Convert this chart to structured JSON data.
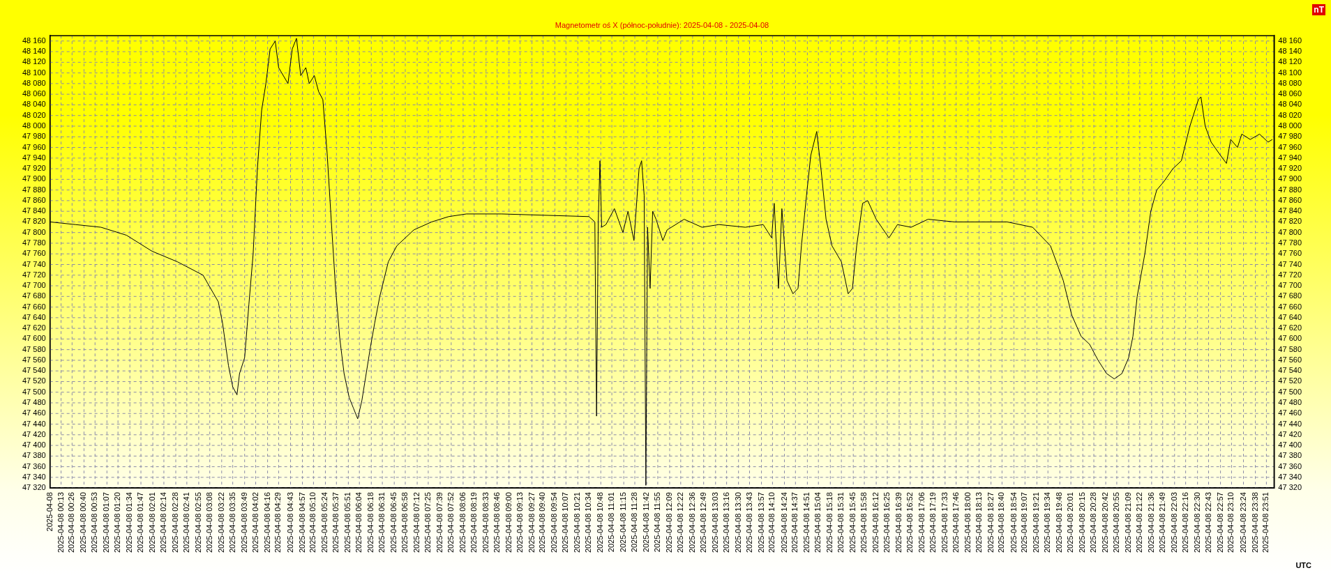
{
  "chart_data": {
    "type": "line",
    "title": "Magnetometr oś X (północ-południe): 2025-04-08 - 2025-04-08",
    "xlabel": "UTC",
    "y2label": "nT",
    "x": [
      "2025-04-08T00:00",
      "2025-04-08T00:30",
      "2025-04-08T01:00",
      "2025-04-08T01:30",
      "2025-04-08T02:00",
      "2025-04-08T02:30",
      "2025-04-08T03:00",
      "2025-04-08T03:18",
      "2025-04-08T03:23",
      "2025-04-08T03:30",
      "2025-04-08T03:35",
      "2025-04-08T03:40",
      "2025-04-08T03:43",
      "2025-04-08T03:49",
      "2025-04-08T03:54",
      "2025-04-08T03:59",
      "2025-04-08T04:04",
      "2025-04-08T04:09",
      "2025-04-08T04:14",
      "2025-04-08T04:19",
      "2025-04-08T04:25",
      "2025-04-08T04:29",
      "2025-04-08T04:40",
      "2025-04-08T04:45",
      "2025-04-08T04:50",
      "2025-04-08T04:55",
      "2025-04-08T05:01",
      "2025-04-08T05:05",
      "2025-04-08T05:11",
      "2025-04-08T05:16",
      "2025-04-08T05:21",
      "2025-04-08T05:26",
      "2025-04-08T05:31",
      "2025-04-08T05:36",
      "2025-04-08T05:41",
      "2025-04-08T05:46",
      "2025-04-08T05:52",
      "2025-04-08T05:57",
      "2025-04-08T06:02",
      "2025-04-08T06:07",
      "2025-04-08T06:12",
      "2025-04-08T06:17",
      "2025-04-08T06:22",
      "2025-04-08T06:28",
      "2025-04-08T06:38",
      "2025-04-08T06:48",
      "2025-04-08T07:08",
      "2025-04-08T07:29",
      "2025-04-08T07:49",
      "2025-04-08T08:10",
      "2025-04-08T08:51",
      "2025-04-08T10:34",
      "2025-04-08T10:41",
      "2025-04-08T10:43",
      "2025-04-08T10:45",
      "2025-04-08T10:47",
      "2025-04-08T10:49",
      "2025-04-08T10:54",
      "2025-04-08T11:04",
      "2025-04-08T11:14",
      "2025-04-08T11:20",
      "2025-04-08T11:27",
      "2025-04-08T11:33",
      "2025-04-08T11:36",
      "2025-04-08T11:39",
      "2025-04-08T11:41",
      "2025-04-08T11:43",
      "2025-04-08T11:46",
      "2025-04-08T11:49",
      "2025-04-08T11:53",
      "2025-04-08T12:01",
      "2025-04-08T12:06",
      "2025-04-08T12:26",
      "2025-04-08T12:47",
      "2025-04-08T13:07",
      "2025-04-08T13:38",
      "2025-04-08T13:59",
      "2025-04-08T14:09",
      "2025-04-08T14:12",
      "2025-04-08T14:17",
      "2025-04-08T14:21",
      "2025-04-08T14:27",
      "2025-04-08T14:34",
      "2025-04-08T14:40",
      "2025-04-08T14:44",
      "2025-04-08T14:50",
      "2025-04-08T14:55",
      "2025-04-08T15:02",
      "2025-04-08T15:07",
      "2025-04-08T15:13",
      "2025-04-08T15:20",
      "2025-04-08T15:31",
      "2025-04-08T15:39",
      "2025-04-08T15:44",
      "2025-04-08T15:49",
      "2025-04-08T15:56",
      "2025-04-08T16:02",
      "2025-04-08T16:12",
      "2025-04-08T16:27",
      "2025-04-08T16:37",
      "2025-04-08T16:53",
      "2025-04-08T17:13",
      "2025-04-08T17:44",
      "2025-04-08T18:46",
      "2025-04-08T19:16",
      "2025-04-08T19:37",
      "2025-04-08T19:52",
      "2025-04-08T20:02",
      "2025-04-08T20:13",
      "2025-04-08T20:23",
      "2025-04-08T20:33",
      "2025-04-08T20:43",
      "2025-04-08T20:52",
      "2025-04-08T21:01",
      "2025-04-08T21:09",
      "2025-04-08T21:14",
      "2025-04-08T21:19",
      "2025-04-08T21:28",
      "2025-04-08T21:35",
      "2025-04-08T21:42",
      "2025-04-08T21:50",
      "2025-04-08T22:01",
      "2025-04-08T22:11",
      "2025-04-08T22:21",
      "2025-04-08T22:31",
      "2025-04-08T22:34",
      "2025-04-08T22:39",
      "2025-04-08T22:46",
      "2025-04-08T22:57",
      "2025-04-08T23:04",
      "2025-04-08T23:09",
      "2025-04-08T23:17",
      "2025-04-08T23:22",
      "2025-04-08T23:32",
      "2025-04-08T23:43",
      "2025-04-08T23:53",
      "2025-04-08T23:58"
    ],
    "series": [
      {
        "color": "#000000",
        "values": [
          47820,
          47815,
          47810,
          47795,
          47765,
          47745,
          47720,
          47670,
          47630,
          47550,
          47510,
          47495,
          47535,
          47565,
          47665,
          47760,
          47920,
          48030,
          48080,
          48145,
          48160,
          48110,
          48080,
          48145,
          48165,
          48095,
          48110,
          48080,
          48095,
          48065,
          48050,
          47950,
          47820,
          47695,
          47600,
          47535,
          47490,
          47470,
          47450,
          47485,
          47535,
          47585,
          47630,
          47680,
          47745,
          47775,
          47805,
          47820,
          47830,
          47835,
          47835,
          47830,
          47820,
          47455,
          47820,
          47935,
          47810,
          47815,
          47845,
          47800,
          47840,
          47785,
          47920,
          47935,
          47870,
          47325,
          47810,
          47695,
          47840,
          47825,
          47785,
          47805,
          47825,
          47810,
          47815,
          47810,
          47815,
          47790,
          47855,
          47695,
          47845,
          47710,
          47685,
          47695,
          47775,
          47870,
          47945,
          47990,
          47920,
          47825,
          47775,
          47745,
          47685,
          47695,
          47775,
          47855,
          47860,
          47825,
          47790,
          47815,
          47810,
          47825,
          47820,
          47820,
          47810,
          47775,
          47710,
          47645,
          47605,
          47590,
          47560,
          47535,
          47525,
          47535,
          47565,
          47605,
          47680,
          47760,
          47840,
          47880,
          47895,
          47920,
          47935,
          48000,
          48050,
          48055,
          48000,
          47970,
          47945,
          47930,
          47975,
          47960,
          47985,
          47975,
          47985,
          47970,
          47975
        ]
      }
    ],
    "xlim": [
      "2025-04-08T00:00",
      "2025-04-09T00:00"
    ],
    "xticks": [
      {
        "value": "2025-04-08T00:00",
        "label": "2025-04-08"
      },
      {
        "value": "2025-04-08T00:13",
        "label": "2025-04-08 00:13"
      },
      {
        "value": "2025-04-08T00:26",
        "label": "2025-04-08 00:26"
      },
      {
        "value": "2025-04-08T00:40",
        "label": "2025-04-08 00:40"
      },
      {
        "value": "2025-04-08T00:53",
        "label": "2025-04-08 00:53"
      },
      {
        "value": "2025-04-08T01:07",
        "label": "2025-04-08 01:07"
      },
      {
        "value": "2025-04-08T01:20",
        "label": "2025-04-08 01:20"
      },
      {
        "value": "2025-04-08T01:34",
        "label": "2025-04-08 01:34"
      },
      {
        "value": "2025-04-08T01:47",
        "label": "2025-04-08 01:47"
      },
      {
        "value": "2025-04-08T02:01",
        "label": "2025-04-08 02:01"
      },
      {
        "value": "2025-04-08T02:14",
        "label": "2025-04-08 02:14"
      },
      {
        "value": "2025-04-08T02:28",
        "label": "2025-04-08 02:28"
      },
      {
        "value": "2025-04-08T02:41",
        "label": "2025-04-08 02:41"
      },
      {
        "value": "2025-04-08T02:55",
        "label": "2025-04-08 02:55"
      },
      {
        "value": "2025-04-08T03:08",
        "label": "2025-04-08 03:08"
      },
      {
        "value": "2025-04-08T03:22",
        "label": "2025-04-08 03:22"
      },
      {
        "value": "2025-04-08T03:35",
        "label": "2025-04-08 03:35"
      },
      {
        "value": "2025-04-08T03:49",
        "label": "2025-04-08 03:49"
      },
      {
        "value": "2025-04-08T04:02",
        "label": "2025-04-08 04:02"
      },
      {
        "value": "2025-04-08T04:16",
        "label": "2025-04-08 04:16"
      },
      {
        "value": "2025-04-08T04:29",
        "label": "2025-04-08 04:29"
      },
      {
        "value": "2025-04-08T04:43",
        "label": "2025-04-08 04:43"
      },
      {
        "value": "2025-04-08T04:57",
        "label": "2025-04-08 04:57"
      },
      {
        "value": "2025-04-08T05:10",
        "label": "2025-04-08 05:10"
      },
      {
        "value": "2025-04-08T05:24",
        "label": "2025-04-08 05:24"
      },
      {
        "value": "2025-04-08T05:37",
        "label": "2025-04-08 05:37"
      },
      {
        "value": "2025-04-08T05:51",
        "label": "2025-04-08 05:51"
      },
      {
        "value": "2025-04-08T06:04",
        "label": "2025-04-08 06:04"
      },
      {
        "value": "2025-04-08T06:18",
        "label": "2025-04-08 06:18"
      },
      {
        "value": "2025-04-08T06:31",
        "label": "2025-04-08 06:31"
      },
      {
        "value": "2025-04-08T06:45",
        "label": "2025-04-08 06:45"
      },
      {
        "value": "2025-04-08T06:58",
        "label": "2025-04-08 06:58"
      },
      {
        "value": "2025-04-08T07:12",
        "label": "2025-04-08 07:12"
      },
      {
        "value": "2025-04-08T07:25",
        "label": "2025-04-08 07:25"
      },
      {
        "value": "2025-04-08T07:39",
        "label": "2025-04-08 07:39"
      },
      {
        "value": "2025-04-08T07:52",
        "label": "2025-04-08 07:52"
      },
      {
        "value": "2025-04-08T08:06",
        "label": "2025-04-08 08:06"
      },
      {
        "value": "2025-04-08T08:19",
        "label": "2025-04-08 08:19"
      },
      {
        "value": "2025-04-08T08:33",
        "label": "2025-04-08 08:33"
      },
      {
        "value": "2025-04-08T08:46",
        "label": "2025-04-08 08:46"
      },
      {
        "value": "2025-04-08T09:00",
        "label": "2025-04-08 09:00"
      },
      {
        "value": "2025-04-08T09:13",
        "label": "2025-04-08 09:13"
      },
      {
        "value": "2025-04-08T09:27",
        "label": "2025-04-08 09:27"
      },
      {
        "value": "2025-04-08T09:40",
        "label": "2025-04-08 09:40"
      },
      {
        "value": "2025-04-08T09:54",
        "label": "2025-04-08 09:54"
      },
      {
        "value": "2025-04-08T10:07",
        "label": "2025-04-08 10:07"
      },
      {
        "value": "2025-04-08T10:21",
        "label": "2025-04-08 10:21"
      },
      {
        "value": "2025-04-08T10:34",
        "label": "2025-04-08 10:34"
      },
      {
        "value": "2025-04-08T10:48",
        "label": "2025-04-08 10:48"
      },
      {
        "value": "2025-04-08T11:01",
        "label": "2025-04-08 11:01"
      },
      {
        "value": "2025-04-08T11:15",
        "label": "2025-04-08 11:15"
      },
      {
        "value": "2025-04-08T11:28",
        "label": "2025-04-08 11:28"
      },
      {
        "value": "2025-04-08T11:42",
        "label": "2025-04-08 11:42"
      },
      {
        "value": "2025-04-08T11:55",
        "label": "2025-04-08 11:55"
      },
      {
        "value": "2025-04-08T12:09",
        "label": "2025-04-08 12:09"
      },
      {
        "value": "2025-04-08T12:22",
        "label": "2025-04-08 12:22"
      },
      {
        "value": "2025-04-08T12:36",
        "label": "2025-04-08 12:36"
      },
      {
        "value": "2025-04-08T12:49",
        "label": "2025-04-08 12:49"
      },
      {
        "value": "2025-04-08T13:03",
        "label": "2025-04-08 13:03"
      },
      {
        "value": "2025-04-08T13:16",
        "label": "2025-04-08 13:16"
      },
      {
        "value": "2025-04-08T13:30",
        "label": "2025-04-08 13:30"
      },
      {
        "value": "2025-04-08T13:43",
        "label": "2025-04-08 13:43"
      },
      {
        "value": "2025-04-08T13:57",
        "label": "2025-04-08 13:57"
      },
      {
        "value": "2025-04-08T14:10",
        "label": "2025-04-08 14:10"
      },
      {
        "value": "2025-04-08T14:24",
        "label": "2025-04-08 14:24"
      },
      {
        "value": "2025-04-08T14:37",
        "label": "2025-04-08 14:37"
      },
      {
        "value": "2025-04-08T14:51",
        "label": "2025-04-08 14:51"
      },
      {
        "value": "2025-04-08T15:04",
        "label": "2025-04-08 15:04"
      },
      {
        "value": "2025-04-08T15:18",
        "label": "2025-04-08 15:18"
      },
      {
        "value": "2025-04-08T15:31",
        "label": "2025-04-08 15:31"
      },
      {
        "value": "2025-04-08T15:45",
        "label": "2025-04-08 15:45"
      },
      {
        "value": "2025-04-08T15:58",
        "label": "2025-04-08 15:58"
      },
      {
        "value": "2025-04-08T16:12",
        "label": "2025-04-08 16:12"
      },
      {
        "value": "2025-04-08T16:25",
        "label": "2025-04-08 16:25"
      },
      {
        "value": "2025-04-08T16:39",
        "label": "2025-04-08 16:39"
      },
      {
        "value": "2025-04-08T16:52",
        "label": "2025-04-08 16:52"
      },
      {
        "value": "2025-04-08T17:06",
        "label": "2025-04-08 17:06"
      },
      {
        "value": "2025-04-08T17:19",
        "label": "2025-04-08 17:19"
      },
      {
        "value": "2025-04-08T17:33",
        "label": "2025-04-08 17:33"
      },
      {
        "value": "2025-04-08T17:46",
        "label": "2025-04-08 17:46"
      },
      {
        "value": "2025-04-08T18:00",
        "label": "2025-04-08 18:00"
      },
      {
        "value": "2025-04-08T18:13",
        "label": "2025-04-08 18:13"
      },
      {
        "value": "2025-04-08T18:27",
        "label": "2025-04-08 18:27"
      },
      {
        "value": "2025-04-08T18:40",
        "label": "2025-04-08 18:40"
      },
      {
        "value": "2025-04-08T18:54",
        "label": "2025-04-08 18:54"
      },
      {
        "value": "2025-04-08T19:07",
        "label": "2025-04-08 19:07"
      },
      {
        "value": "2025-04-08T19:21",
        "label": "2025-04-08 19:21"
      },
      {
        "value": "2025-04-08T19:34",
        "label": "2025-04-08 19:34"
      },
      {
        "value": "2025-04-08T19:48",
        "label": "2025-04-08 19:48"
      },
      {
        "value": "2025-04-08T20:01",
        "label": "2025-04-08 20:01"
      },
      {
        "value": "2025-04-08T20:15",
        "label": "2025-04-08 20:15"
      },
      {
        "value": "2025-04-08T20:28",
        "label": "2025-04-08 20:28"
      },
      {
        "value": "2025-04-08T20:42",
        "label": "2025-04-08 20:42"
      },
      {
        "value": "2025-04-08T20:55",
        "label": "2025-04-08 20:55"
      },
      {
        "value": "2025-04-08T21:09",
        "label": "2025-04-08 21:09"
      },
      {
        "value": "2025-04-08T21:22",
        "label": "2025-04-08 21:22"
      },
      {
        "value": "2025-04-08T21:36",
        "label": "2025-04-08 21:36"
      },
      {
        "value": "2025-04-08T21:49",
        "label": "2025-04-08 21:49"
      },
      {
        "value": "2025-04-08T22:03",
        "label": "2025-04-08 22:03"
      },
      {
        "value": "2025-04-08T22:16",
        "label": "2025-04-08 22:16"
      },
      {
        "value": "2025-04-08T22:30",
        "label": "2025-04-08 22:30"
      },
      {
        "value": "2025-04-08T22:43",
        "label": "2025-04-08 22:43"
      },
      {
        "value": "2025-04-08T22:57",
        "label": "2025-04-08 22:57"
      },
      {
        "value": "2025-04-08T23:10",
        "label": "2025-04-08 23:10"
      },
      {
        "value": "2025-04-08T23:24",
        "label": "2025-04-08 23:24"
      },
      {
        "value": "2025-04-08T23:38",
        "label": "2025-04-08 23:38"
      },
      {
        "value": "2025-04-08T23:51",
        "label": "2025-04-08 23:51"
      }
    ],
    "ylim": [
      47320,
      48170
    ],
    "yticks": [
      {
        "value": 47320,
        "label": "47 320"
      },
      {
        "value": 47340,
        "label": "47 340"
      },
      {
        "value": 47360,
        "label": "47 360"
      },
      {
        "value": 47380,
        "label": "47 380"
      },
      {
        "value": 47400,
        "label": "47 400"
      },
      {
        "value": 47420,
        "label": "47 420"
      },
      {
        "value": 47440,
        "label": "47 440"
      },
      {
        "value": 47460,
        "label": "47 460"
      },
      {
        "value": 47480,
        "label": "47 480"
      },
      {
        "value": 47500,
        "label": "47 500"
      },
      {
        "value": 47520,
        "label": "47 520"
      },
      {
        "value": 47540,
        "label": "47 540"
      },
      {
        "value": 47560,
        "label": "47 560"
      },
      {
        "value": 47580,
        "label": "47 580"
      },
      {
        "value": 47600,
        "label": "47 600"
      },
      {
        "value": 47620,
        "label": "47 620"
      },
      {
        "value": 47640,
        "label": "47 640"
      },
      {
        "value": 47660,
        "label": "47 660"
      },
      {
        "value": 47680,
        "label": "47 680"
      },
      {
        "value": 47700,
        "label": "47 700"
      },
      {
        "value": 47720,
        "label": "47 720"
      },
      {
        "value": 47740,
        "label": "47 740"
      },
      {
        "value": 47760,
        "label": "47 760"
      },
      {
        "value": 47780,
        "label": "47 780"
      },
      {
        "value": 47800,
        "label": "47 800"
      },
      {
        "value": 47820,
        "label": "47 820"
      },
      {
        "value": 47840,
        "label": "47 840"
      },
      {
        "value": 47860,
        "label": "47 860"
      },
      {
        "value": 47880,
        "label": "47 880"
      },
      {
        "value": 47900,
        "label": "47 900"
      },
      {
        "value": 47920,
        "label": "47 920"
      },
      {
        "value": 47940,
        "label": "47 940"
      },
      {
        "value": 47960,
        "label": "47 960"
      },
      {
        "value": 47980,
        "label": "47 980"
      },
      {
        "value": 48000,
        "label": "48 000"
      },
      {
        "value": 48020,
        "label": "48 020"
      },
      {
        "value": 48040,
        "label": "48 040"
      },
      {
        "value": 48060,
        "label": "48 060"
      },
      {
        "value": 48080,
        "label": "48 080"
      },
      {
        "value": 48100,
        "label": "48 100"
      },
      {
        "value": 48120,
        "label": "48 120"
      },
      {
        "value": 48140,
        "label": "48 140"
      },
      {
        "value": 48160,
        "label": "48 160"
      }
    ],
    "y2lim": [
      47320,
      48170
    ],
    "y2ticks": [
      {
        "value": 47320,
        "label": "47 320"
      },
      {
        "value": 47340,
        "label": "47 340"
      },
      {
        "value": 47360,
        "label": "47 360"
      },
      {
        "value": 47380,
        "label": "47 380"
      },
      {
        "value": 47400,
        "label": "47 400"
      },
      {
        "value": 47420,
        "label": "47 420"
      },
      {
        "value": 47440,
        "label": "47 440"
      },
      {
        "value": 47460,
        "label": "47 460"
      },
      {
        "value": 47480,
        "label": "47 480"
      },
      {
        "value": 47500,
        "label": "47 500"
      },
      {
        "value": 47520,
        "label": "47 520"
      },
      {
        "value": 47540,
        "label": "47 540"
      },
      {
        "value": 47560,
        "label": "47 560"
      },
      {
        "value": 47580,
        "label": "47 580"
      },
      {
        "value": 47600,
        "label": "47 600"
      },
      {
        "value": 47620,
        "label": "47 620"
      },
      {
        "value": 47640,
        "label": "47 640"
      },
      {
        "value": 47660,
        "label": "47 660"
      },
      {
        "value": 47680,
        "label": "47 680"
      },
      {
        "value": 47700,
        "label": "47 700"
      },
      {
        "value": 47720,
        "label": "47 720"
      },
      {
        "value": 47740,
        "label": "47 740"
      },
      {
        "value": 47760,
        "label": "47 760"
      },
      {
        "value": 47780,
        "label": "47 780"
      },
      {
        "value": 47800,
        "label": "47 800"
      },
      {
        "value": 47820,
        "label": "47 820"
      },
      {
        "value": 47840,
        "label": "47 840"
      },
      {
        "value": 47860,
        "label": "47 860"
      },
      {
        "value": 47880,
        "label": "47 880"
      },
      {
        "value": 47900,
        "label": "47 900"
      },
      {
        "value": 47920,
        "label": "47 920"
      },
      {
        "value": 47940,
        "label": "47 940"
      },
      {
        "value": 47960,
        "label": "47 960"
      },
      {
        "value": 47980,
        "label": "47 980"
      },
      {
        "value": 48000,
        "label": "48 000"
      },
      {
        "value": 48020,
        "label": "48 020"
      },
      {
        "value": 48040,
        "label": "48 040"
      },
      {
        "value": 48060,
        "label": "48 060"
      },
      {
        "value": 48080,
        "label": "48 080"
      },
      {
        "value": 48100,
        "label": "48 100"
      },
      {
        "value": 48120,
        "label": "48 120"
      },
      {
        "value": 48140,
        "label": "48 140"
      },
      {
        "value": 48160,
        "label": "48 160"
      }
    ],
    "grid": true,
    "legend": false,
    "marker": "none",
    "line_style": "solid"
  }
}
